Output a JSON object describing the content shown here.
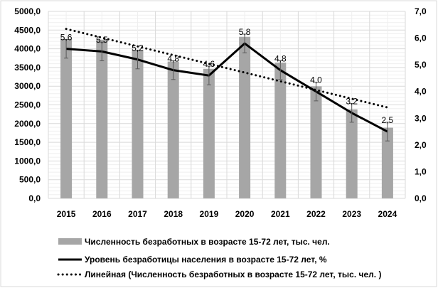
{
  "chart_data": {
    "type": "bar",
    "categories": [
      "2015",
      "2016",
      "2017",
      "2018",
      "2019",
      "2020",
      "2021",
      "2022",
      "2023",
      "2024"
    ],
    "series": [
      {
        "name": "Численность безработных в возрасте 15-72 лет, тыс. чел.",
        "type": "bar",
        "axis": "left",
        "color": "#a6a6a6",
        "values": [
          4264,
          4243,
          3967,
          3658,
          3465,
          4321,
          3631,
          2996,
          2380,
          1890
        ]
      },
      {
        "name": "Уровень безработицы населения в возрасте 15-72 лет, %",
        "type": "line",
        "axis": "right",
        "color": "#000000",
        "values": [
          5.6,
          5.5,
          5.2,
          4.8,
          4.6,
          5.8,
          4.8,
          4.0,
          3.2,
          2.5
        ],
        "data_labels": [
          "5,6",
          "5,5",
          "5,2",
          "4,8",
          "4,6",
          "5,8",
          "4,8",
          "4,0",
          "3,2",
          "2,5"
        ],
        "error_bar": 0.35
      },
      {
        "name": "Линейная (Численность безработных в возрасте 15-72 лет, тыс. чел. )",
        "type": "trendline",
        "axis": "left",
        "color": "#000000"
      }
    ],
    "left_axis": {
      "ylim": [
        0,
        5000
      ],
      "ticks": [
        "0,0",
        "500,0",
        "1000,0",
        "1500,0",
        "2000,0",
        "2500,0",
        "3000,0",
        "3500,0",
        "4000,0",
        "4500,0",
        "5000,0"
      ]
    },
    "right_axis": {
      "ylim": [
        0,
        7
      ],
      "ticks": [
        "0,0",
        "1,0",
        "2,0",
        "3,0",
        "4,0",
        "5,0",
        "6,0",
        "7,0"
      ]
    },
    "grid": true,
    "legend": "bottom",
    "title": "",
    "xlabel": "",
    "ylabel": ""
  }
}
